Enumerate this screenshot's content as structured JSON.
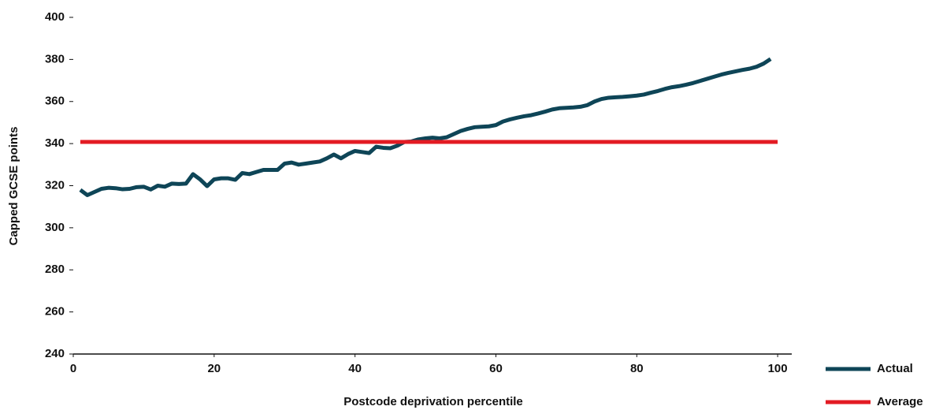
{
  "chart_data": {
    "type": "line",
    "x_label": "Postcode deprivation percentile",
    "y_label": "Capped GCSE points",
    "xlim": [
      0,
      102
    ],
    "xticks": [
      0,
      20,
      40,
      60,
      80,
      100
    ],
    "ylim": [
      240,
      400
    ],
    "yticks": [
      240,
      260,
      280,
      300,
      320,
      340,
      360,
      380,
      400
    ],
    "legend": "lower right",
    "series": [
      {
        "name": "Actual",
        "color": "#0e4557",
        "x": [
          1,
          2,
          3,
          4,
          5,
          6,
          7,
          8,
          9,
          10,
          11,
          12,
          13,
          14,
          15,
          16,
          17,
          18,
          19,
          20,
          21,
          22,
          23,
          24,
          25,
          26,
          27,
          28,
          29,
          30,
          31,
          32,
          33,
          34,
          35,
          36,
          37,
          38,
          39,
          40,
          41,
          42,
          43,
          44,
          45,
          46,
          47,
          48,
          49,
          50,
          51,
          52,
          53,
          54,
          55,
          56,
          57,
          58,
          59,
          60,
          61,
          62,
          63,
          64,
          65,
          66,
          67,
          68,
          69,
          70,
          71,
          72,
          73,
          74,
          75,
          76,
          77,
          78,
          79,
          80,
          81,
          82,
          83,
          84,
          85,
          86,
          87,
          88,
          89,
          90,
          91,
          92,
          93,
          94,
          95,
          96,
          97,
          98,
          99
        ],
        "values": [
          318,
          315.5,
          317,
          318.5,
          319,
          318.8,
          318.3,
          318.5,
          319.3,
          319.5,
          318.2,
          320,
          319.5,
          321,
          320.8,
          321,
          325.5,
          323,
          319.8,
          323,
          323.5,
          323.5,
          322.8,
          326,
          325.5,
          326.5,
          327.5,
          327.5,
          327.5,
          330.5,
          331,
          330,
          330.5,
          331,
          331.5,
          333,
          334.8,
          333,
          335,
          336.5,
          336,
          335.5,
          338.5,
          338,
          337.8,
          339,
          340.8,
          341,
          342,
          342.5,
          342.8,
          342.5,
          343,
          344.5,
          346,
          347,
          347.8,
          348,
          348.2,
          348.8,
          350.5,
          351.5,
          352.3,
          353,
          353.5,
          354.3,
          355.2,
          356.2,
          356.8,
          357,
          357.2,
          357.5,
          358.3,
          360,
          361.2,
          361.8,
          362,
          362.2,
          362.5,
          362.8,
          363.3,
          364.2,
          365,
          366,
          366.8,
          367.3,
          368,
          368.8,
          369.8,
          370.8,
          371.8,
          372.8,
          373.6,
          374.3,
          375,
          375.6,
          376.5,
          378,
          380.2
        ]
      },
      {
        "name": "Average",
        "color": "#e31b23",
        "x": [
          1,
          100
        ],
        "values": [
          340.8,
          340.8
        ]
      }
    ]
  }
}
